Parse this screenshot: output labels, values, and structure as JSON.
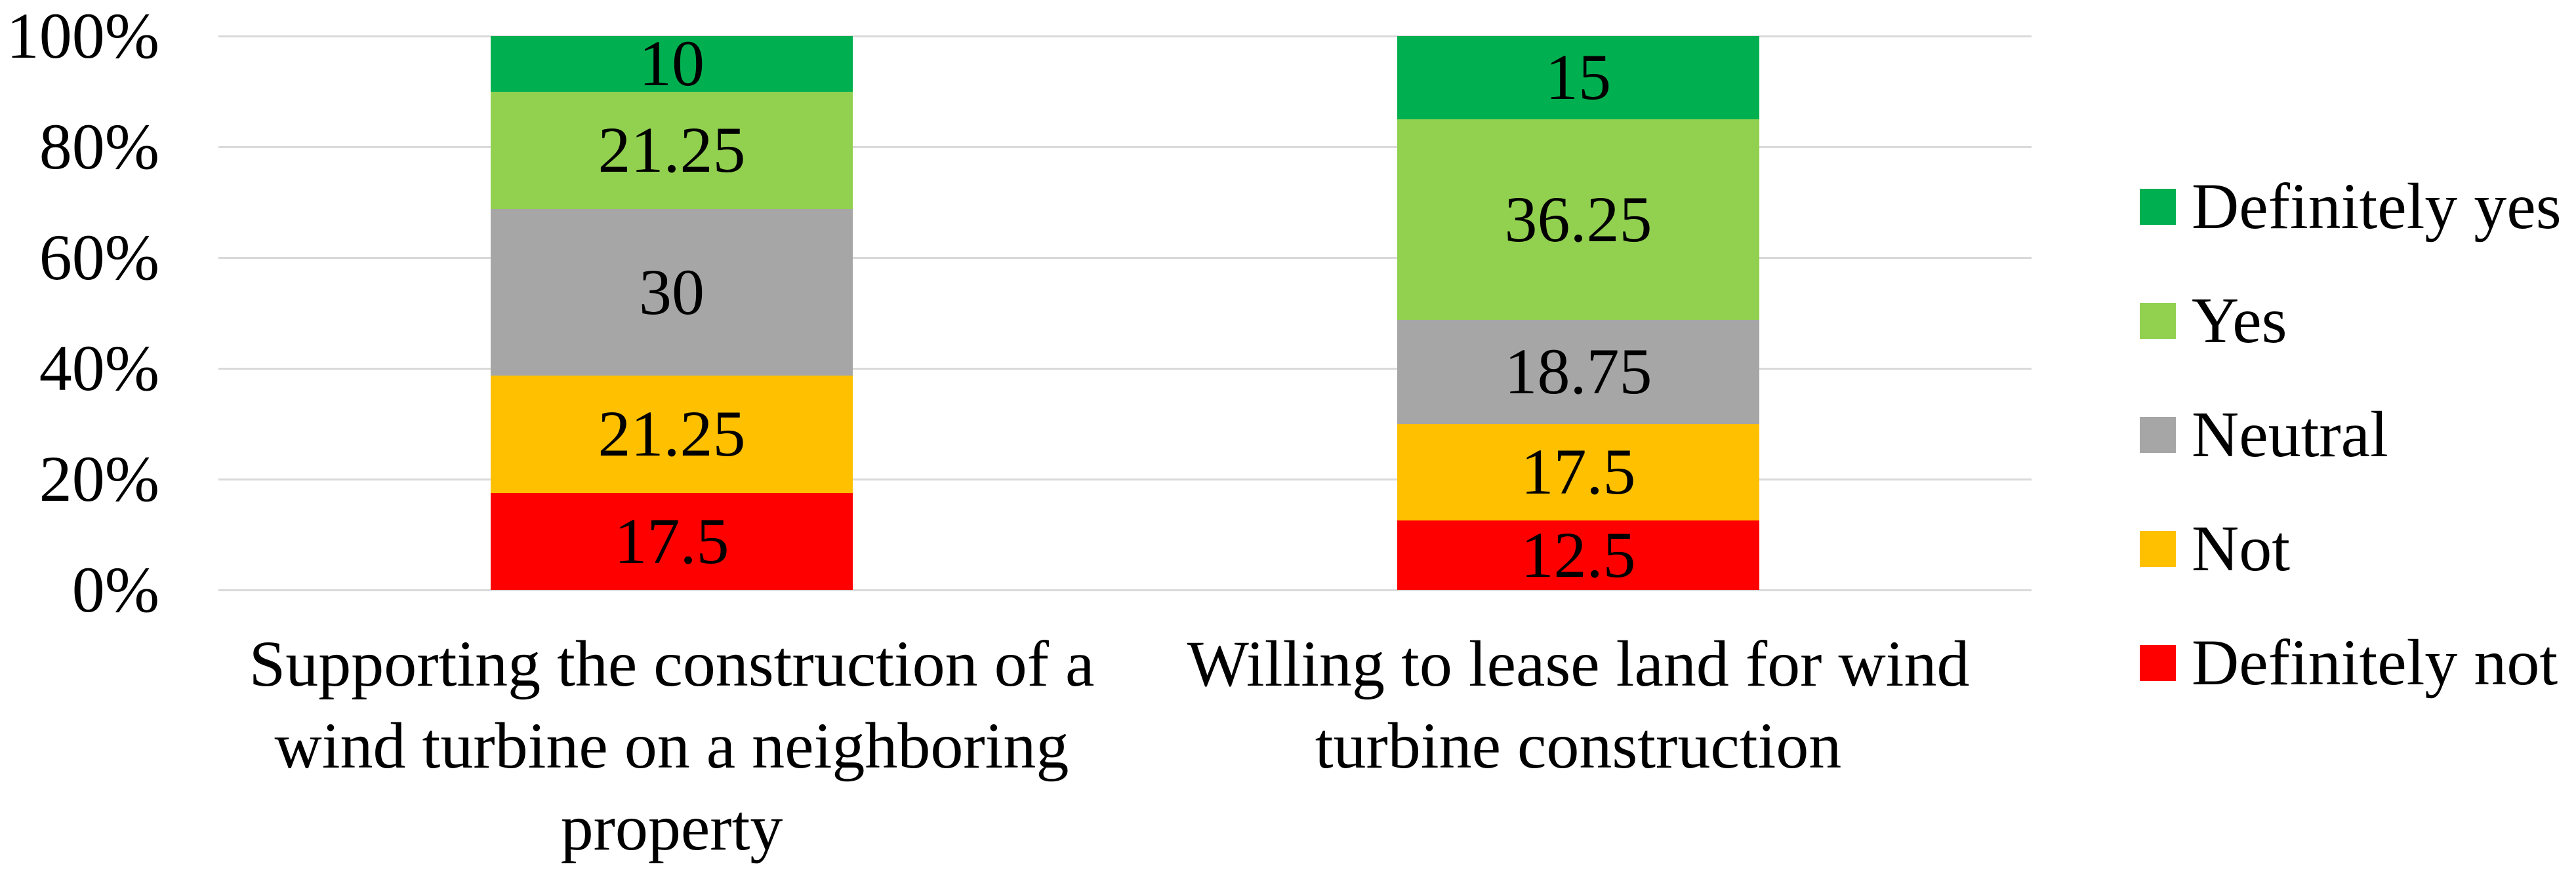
{
  "chart_data": {
    "type": "bar",
    "variant": "stacked-100-percent-column",
    "title": "",
    "categories": [
      {
        "label": "Supporting the construction of a wind turbine on a neighboring property",
        "label_lines": [
          "Supporting the construction of a",
          "wind turbine on a neighboring",
          "property"
        ]
      },
      {
        "label": "Willing to lease land for wind turbine construction",
        "label_lines": [
          "Willing to lease land for wind",
          "turbine construction"
        ]
      }
    ],
    "series": [
      {
        "name": "Definitely yes",
        "color": "#00B050",
        "values": [
          10,
          15
        ]
      },
      {
        "name": "Yes",
        "color": "#92D050",
        "values": [
          21.25,
          36.25
        ]
      },
      {
        "name": "Neutral",
        "color": "#A6A6A6",
        "values": [
          30,
          18.75
        ]
      },
      {
        "name": "Not",
        "color": "#FFC000",
        "values": [
          21.25,
          17.5
        ]
      },
      {
        "name": "Definitely not",
        "color": "#FF0000",
        "values": [
          17.5,
          12.5
        ]
      }
    ],
    "stack_order_bottom_to_top": [
      "Definitely not",
      "Not",
      "Neutral",
      "Yes",
      "Definitely yes"
    ],
    "data_labels_visible": true,
    "data_label_color": "#000000",
    "y_axis": {
      "min": 0,
      "max": 100,
      "ticks": [
        {
          "label": "0%",
          "value": 0
        },
        {
          "label": "20%",
          "value": 20
        },
        {
          "label": "40%",
          "value": 40
        },
        {
          "label": "60%",
          "value": 60
        },
        {
          "label": "80%",
          "value": 80
        },
        {
          "label": "100%",
          "value": 100
        }
      ]
    },
    "legend": {
      "position": "right",
      "entries": [
        "Definitely yes",
        "Yes",
        "Neutral",
        "Not",
        "Definitely not"
      ]
    },
    "grid": {
      "visible": true,
      "color": "#D9D9D9"
    },
    "background": "#FFFFFF",
    "text_color": "#000000"
  }
}
